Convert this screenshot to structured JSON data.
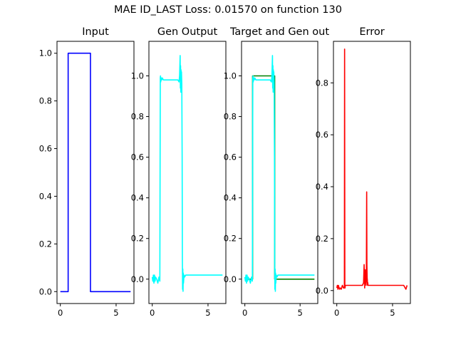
{
  "figure": {
    "suptitle": "MAE ID_LAST Loss: 0.01570 on function 130"
  },
  "chart_data": [
    {
      "type": "line",
      "title": "Input",
      "xlim": [
        -0.3,
        6.6
      ],
      "ylim": [
        -0.05,
        1.05
      ],
      "xticks": [
        0,
        5
      ],
      "yticks": [
        0.0,
        0.2,
        0.4,
        0.6,
        0.8,
        1.0
      ],
      "ytick_labels": [
        "0.0",
        "0.2",
        "0.4",
        "0.6",
        "0.8",
        "1.0"
      ],
      "series": [
        {
          "color": "#0000ff",
          "x": [
            0,
            0.7,
            0.7,
            2.7,
            2.7,
            6.3
          ],
          "y": [
            0,
            0,
            1,
            1,
            0,
            0
          ]
        }
      ]
    },
    {
      "type": "line",
      "title": "Gen Output",
      "xlim": [
        -0.3,
        6.6
      ],
      "ylim": [
        -0.12,
        1.17
      ],
      "xticks": [
        0,
        5
      ],
      "yticks": [
        0.0,
        0.2,
        0.4,
        0.6,
        0.8,
        1.0
      ],
      "ytick_labels": [
        "0.0",
        "0.2",
        "0.4",
        "0.6",
        "0.8",
        "1.0"
      ],
      "series": [
        {
          "color": "#00ffff",
          "x": [
            0,
            0.05,
            0.1,
            0.15,
            0.2,
            0.25,
            0.3,
            0.4,
            0.5,
            0.6,
            0.68,
            0.7,
            0.72,
            0.74,
            0.76,
            0.8,
            0.85,
            0.9,
            1.0,
            1.5,
            2.0,
            2.3,
            2.4,
            2.45,
            2.5,
            2.52,
            2.54,
            2.56,
            2.58,
            2.6,
            2.62,
            2.65,
            2.68,
            2.7,
            2.72,
            2.74,
            2.76,
            2.78,
            2.8,
            2.85,
            2.9,
            3.0,
            4.0,
            5.0,
            6.3
          ],
          "y": [
            0.01,
            -0.01,
            0.02,
            -0.02,
            0.02,
            -0.01,
            0.01,
            0.0,
            -0.02,
            0.01,
            -0.01,
            0.5,
            0.99,
            1.0,
            0.97,
            0.99,
            0.98,
            0.99,
            0.98,
            0.98,
            0.98,
            0.98,
            0.97,
            1.0,
            1.1,
            0.94,
            1.05,
            0.92,
            1.03,
            0.95,
            1.02,
            0.96,
            0.6,
            0.1,
            -0.05,
            0.05,
            -0.06,
            0.03,
            -0.02,
            0.02,
            0.01,
            0.02,
            0.02,
            0.02,
            0.02
          ]
        }
      ]
    },
    {
      "type": "line",
      "title": "Target and Gen out",
      "xlim": [
        -0.3,
        6.6
      ],
      "ylim": [
        -0.12,
        1.17
      ],
      "xticks": [
        0,
        5
      ],
      "yticks": [
        0.0,
        0.2,
        0.4,
        0.6,
        0.8,
        1.0
      ],
      "ytick_labels": [
        "0.0",
        "0.2",
        "0.4",
        "0.6",
        "0.8",
        "1.0"
      ],
      "series": [
        {
          "color": "#008000",
          "x": [
            0,
            0.7,
            0.7,
            2.7,
            2.7,
            6.3
          ],
          "y": [
            0,
            0,
            1,
            1,
            0,
            0
          ]
        },
        {
          "color": "#00ffff",
          "x": [
            0,
            0.05,
            0.1,
            0.15,
            0.2,
            0.25,
            0.3,
            0.4,
            0.5,
            0.6,
            0.68,
            0.7,
            0.72,
            0.74,
            0.76,
            0.8,
            0.85,
            0.9,
            1.0,
            1.5,
            2.0,
            2.3,
            2.4,
            2.45,
            2.5,
            2.52,
            2.54,
            2.56,
            2.58,
            2.6,
            2.62,
            2.65,
            2.68,
            2.7,
            2.72,
            2.74,
            2.76,
            2.78,
            2.8,
            2.85,
            2.9,
            3.0,
            4.0,
            5.0,
            6.3
          ],
          "y": [
            0.01,
            -0.01,
            0.02,
            -0.02,
            0.02,
            -0.01,
            0.01,
            0.0,
            -0.02,
            0.01,
            -0.01,
            0.5,
            0.99,
            1.0,
            0.97,
            0.99,
            0.98,
            0.99,
            0.98,
            0.98,
            0.98,
            0.98,
            0.97,
            1.0,
            1.1,
            0.94,
            1.05,
            0.92,
            1.03,
            0.95,
            1.02,
            0.96,
            0.6,
            0.1,
            -0.05,
            0.05,
            -0.06,
            0.03,
            -0.02,
            0.02,
            0.01,
            0.02,
            0.02,
            0.02,
            0.02
          ]
        }
      ]
    },
    {
      "type": "line",
      "title": "Error",
      "xlim": [
        -0.3,
        6.6
      ],
      "ylim": [
        -0.05,
        0.96
      ],
      "xticks": [
        0,
        5
      ],
      "yticks": [
        0.0,
        0.2,
        0.4,
        0.6,
        0.8
      ],
      "ytick_labels": [
        "0.0",
        "0.2",
        "0.4",
        "0.6",
        "0.8"
      ],
      "series": [
        {
          "color": "#ff0000",
          "x": [
            0,
            0.05,
            0.1,
            0.15,
            0.2,
            0.25,
            0.3,
            0.4,
            0.5,
            0.6,
            0.68,
            0.7,
            0.72,
            0.74,
            0.76,
            0.8,
            0.9,
            1.0,
            1.5,
            2.0,
            2.3,
            2.4,
            2.45,
            2.5,
            2.52,
            2.54,
            2.56,
            2.58,
            2.6,
            2.62,
            2.65,
            2.68,
            2.7,
            2.72,
            2.74,
            2.76,
            2.78,
            2.8,
            2.85,
            2.9,
            3.0,
            4.0,
            5.0,
            6.0,
            6.2,
            6.3
          ],
          "y": [
            0.01,
            0.02,
            0.005,
            0.02,
            0.01,
            0.005,
            0.01,
            0.005,
            0.02,
            0.01,
            0.01,
            0.93,
            0.02,
            0.01,
            0.02,
            0.02,
            0.02,
            0.02,
            0.02,
            0.02,
            0.02,
            0.03,
            0.1,
            0.01,
            0.06,
            0.05,
            0.08,
            0.03,
            0.05,
            0.02,
            0.04,
            0.38,
            0.1,
            0.05,
            0.04,
            0.02,
            0.03,
            0.02,
            0.02,
            0.02,
            0.02,
            0.02,
            0.02,
            0.02,
            0.005,
            0.02
          ]
        }
      ]
    }
  ]
}
